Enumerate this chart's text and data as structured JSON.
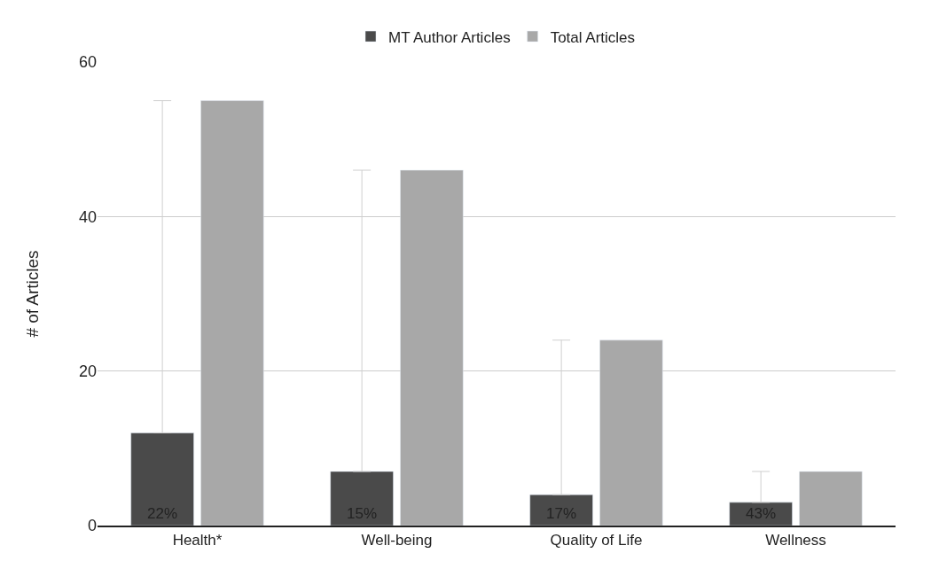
{
  "chart_data": {
    "type": "bar",
    "ylabel": "# of Articles",
    "categories": [
      "Health*",
      "Well-being",
      "Quality of Life",
      "Wellness"
    ],
    "series": [
      {
        "name": "MT Author Articles",
        "color": "#4a4a4a",
        "values": [
          12,
          7,
          4,
          3
        ],
        "errors": [
          [
            12,
            55
          ],
          [
            7,
            46
          ],
          [
            4,
            24
          ],
          [
            3,
            7
          ]
        ]
      },
      {
        "name": "Total Articles",
        "color": "#a8a8a8",
        "values": [
          55,
          46,
          24,
          7
        ]
      }
    ],
    "annotations": [
      {
        "text": "22%",
        "x": "Health*",
        "y": 0
      },
      {
        "text": "15%",
        "x": "Well-being",
        "y": 0
      },
      {
        "text": "17%",
        "x": "Quality of Life",
        "y": 0
      },
      {
        "text": "43%",
        "x": "Wellness",
        "y": 0
      }
    ],
    "ylim": [
      0,
      60
    ],
    "yticks": [
      0,
      20,
      40,
      60
    ],
    "grid": "y",
    "legend": "top"
  }
}
